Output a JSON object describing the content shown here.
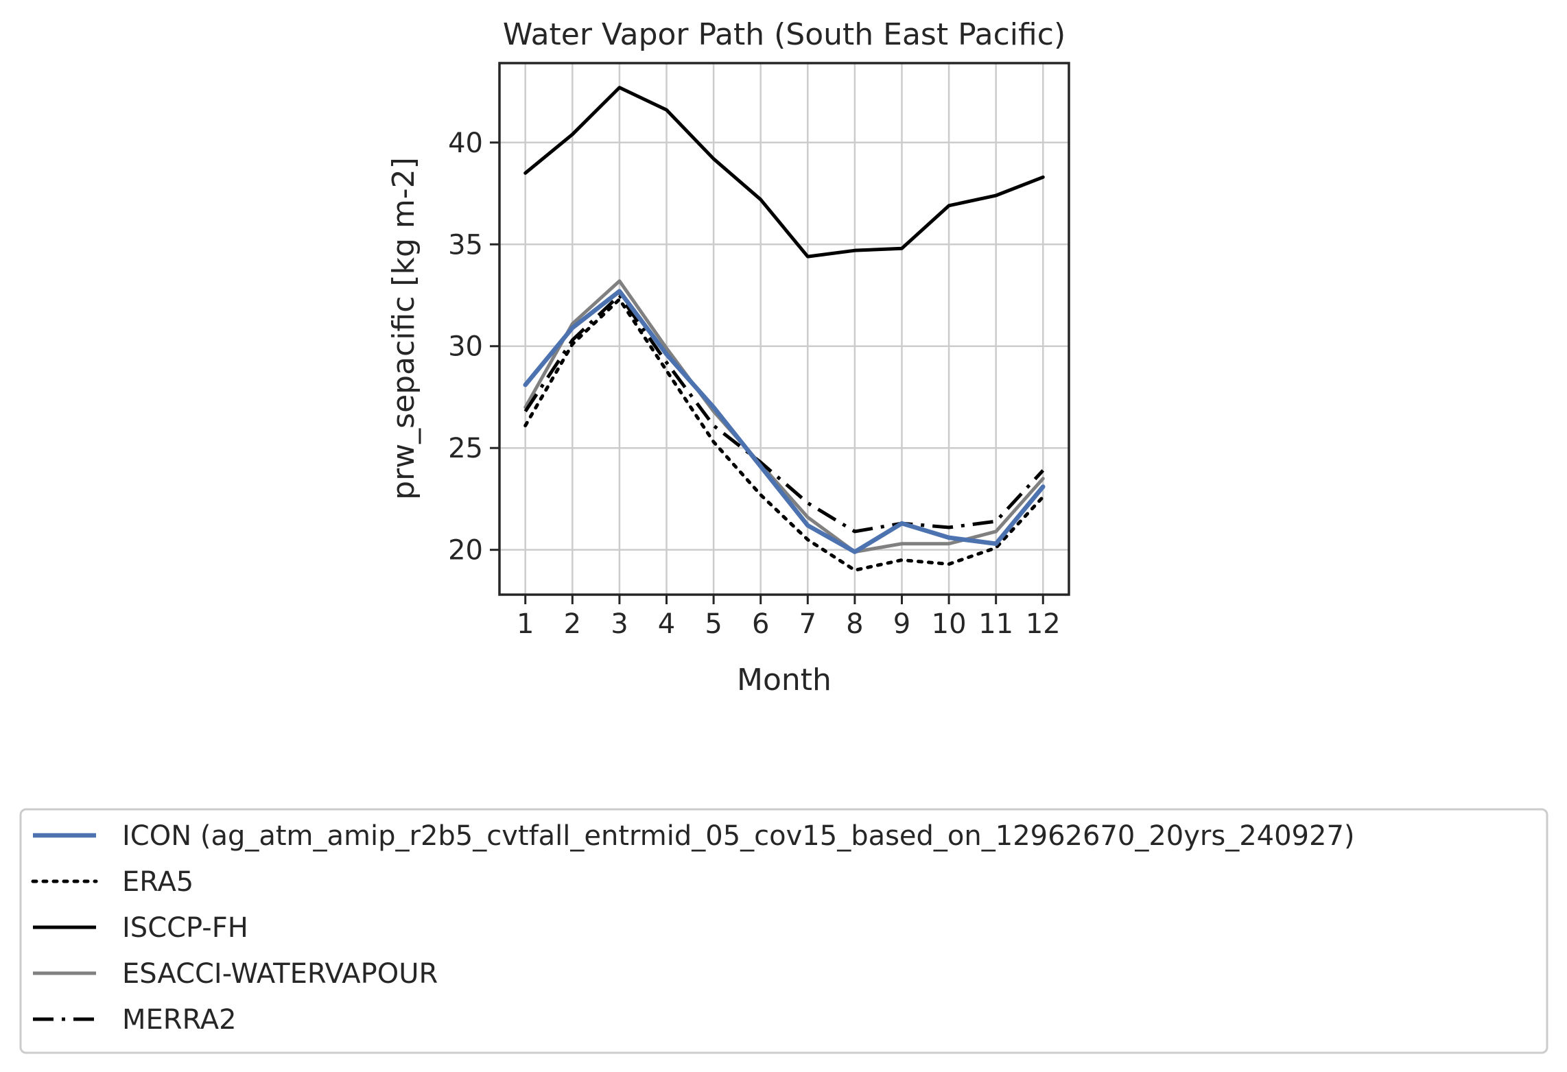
{
  "chart_data": {
    "type": "line",
    "title": "Water Vapor Path (South East Pacific)",
    "xlabel": "Month",
    "ylabel": "prw_sepacific [kg m-2]",
    "x": [
      1,
      2,
      3,
      4,
      5,
      6,
      7,
      8,
      9,
      10,
      11,
      12
    ],
    "x_tick_labels": [
      "1",
      "2",
      "3",
      "4",
      "5",
      "6",
      "7",
      "8",
      "9",
      "10",
      "11",
      "12"
    ],
    "xlim": [
      0.45,
      12.55
    ],
    "ylim": [
      17.8,
      43.9
    ],
    "y_ticks": [
      20,
      25,
      30,
      35,
      40
    ],
    "y_tick_labels": [
      "20",
      "25",
      "30",
      "35",
      "40"
    ],
    "grid": true,
    "legend_position": "below",
    "series": [
      {
        "name": "ICON (ag_atm_amip_r2b5_cvtfall_entrmid_05_cov15_based_on_12962670_20yrs_240927)",
        "color": "#4c72b0",
        "style": "solid",
        "width": "thick",
        "values": [
          28.1,
          30.9,
          32.7,
          29.6,
          27.0,
          24.1,
          21.2,
          19.9,
          21.3,
          20.6,
          20.3,
          23.1
        ]
      },
      {
        "name": "ERA5",
        "color": "#000000",
        "style": "dotted",
        "width": "normal",
        "values": [
          26.1,
          30.1,
          32.3,
          28.8,
          25.3,
          22.7,
          20.5,
          19.0,
          19.5,
          19.3,
          20.1,
          22.6
        ]
      },
      {
        "name": "ISCCP-FH",
        "color": "#000000",
        "style": "solid",
        "width": "normal",
        "values": [
          38.5,
          40.4,
          42.7,
          41.6,
          39.2,
          37.2,
          34.4,
          34.7,
          34.8,
          36.9,
          37.4,
          38.3
        ]
      },
      {
        "name": "ESACCI-WATERVAPOUR",
        "color": "#808080",
        "style": "solid",
        "width": "normal",
        "values": [
          27.0,
          31.1,
          33.2,
          29.9,
          26.8,
          24.2,
          21.6,
          19.9,
          20.3,
          20.3,
          20.9,
          23.5
        ]
      },
      {
        "name": "MERRA2",
        "color": "#000000",
        "style": "dashdot",
        "width": "normal",
        "values": [
          26.8,
          30.3,
          32.5,
          29.2,
          26.1,
          24.3,
          22.3,
          20.9,
          21.3,
          21.1,
          21.4,
          23.9
        ]
      }
    ]
  }
}
